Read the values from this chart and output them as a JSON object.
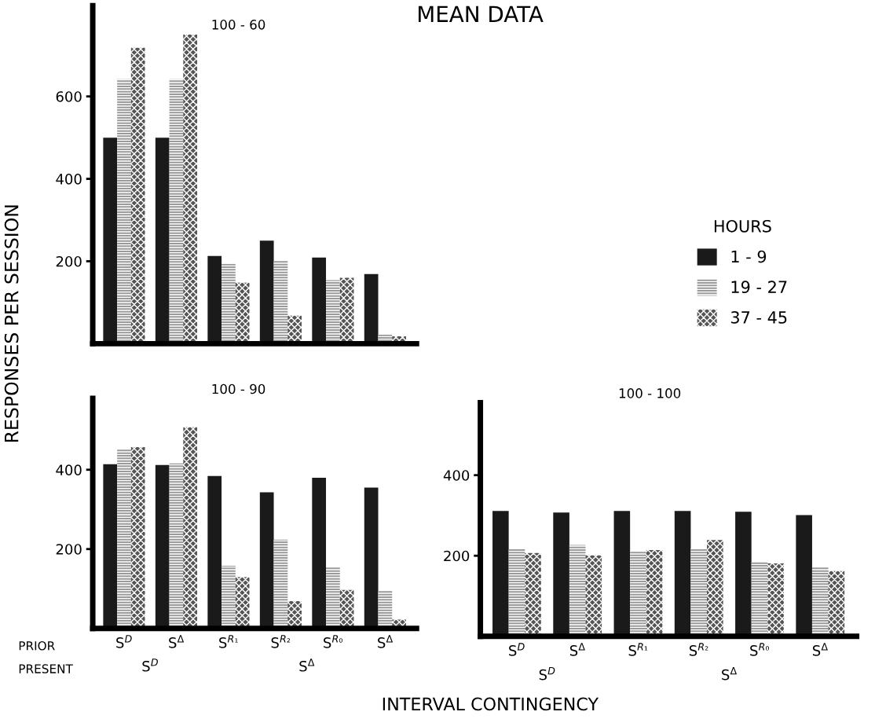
{
  "chart_data": [
    {
      "type": "bar",
      "title": "MEAN DATA",
      "subtitle": "100 - 60",
      "ylabel": "RESPONSES PER SESSION",
      "legend_title": "HOURS",
      "legend": "right",
      "tick_labels": "y",
      "categories": [
        null,
        null,
        null,
        null,
        null,
        null
      ],
      "ylim": [
        0,
        820
      ],
      "yticks": [
        200,
        400,
        600
      ],
      "series": [
        {
          "name": "1 - 9",
          "color": "#1a1a1a",
          "values": [
            500,
            500,
            213,
            250,
            209,
            169
          ]
        },
        {
          "name": "19 - 27",
          "color": "#9a9a9a",
          "values": [
            642,
            642,
            194,
            201,
            154,
            22
          ]
        },
        {
          "name": "37 - 45",
          "color": "#555555",
          "values": [
            718,
            750,
            148,
            68,
            160,
            18
          ]
        }
      ]
    },
    {
      "type": "bar",
      "subtitle": "100 - 90",
      "xlabel": "INTERVAL CONTINGENCY",
      "categories": [
        "S$^{D}$",
        "S$^{Δ}$",
        "S$^{R₁}$",
        "S$^{R₂}$",
        "S$^{R₀}$",
        "S$^{Δ}$"
      ],
      "ylim": [
        0,
        580
      ],
      "yticks": [
        200,
        400
      ],
      "annotations": [
        "PRIOR",
        "PRESENT",
        "S$^{D}$",
        "S$^{Δ}$"
      ],
      "series": [
        {
          "color": "#1a1a1a",
          "values": [
            414,
            412,
            384,
            343,
            380,
            355
          ]
        },
        {
          "color": "#9a9a9a",
          "values": [
            451,
            416,
            158,
            224,
            154,
            95
          ]
        },
        {
          "color": "#555555",
          "values": [
            457,
            507,
            129,
            69,
            97,
            22
          ]
        }
      ]
    },
    {
      "type": "bar",
      "subtitle": "100 - 100",
      "categories": [
        "S$^{D}$",
        "S$^{Δ}$",
        "S$^{R₁}$",
        "S$^{R₂}$",
        "S$^{R₀}$",
        "S$^{Δ}$"
      ],
      "ylim": [
        0,
        580
      ],
      "yticks": [
        200,
        400
      ],
      "annotations": [
        "S$^{D}$",
        "S$^{Δ}$"
      ],
      "series": [
        {
          "color": "#1a1a1a",
          "values": [
            311,
            307,
            311,
            311,
            309,
            301
          ]
        },
        {
          "color": "#9a9a9a",
          "values": [
            216,
            227,
            212,
            218,
            185,
            171
          ]
        },
        {
          "color": "#555555",
          "values": [
            207,
            201,
            214,
            239,
            181,
            162
          ]
        }
      ]
    }
  ]
}
